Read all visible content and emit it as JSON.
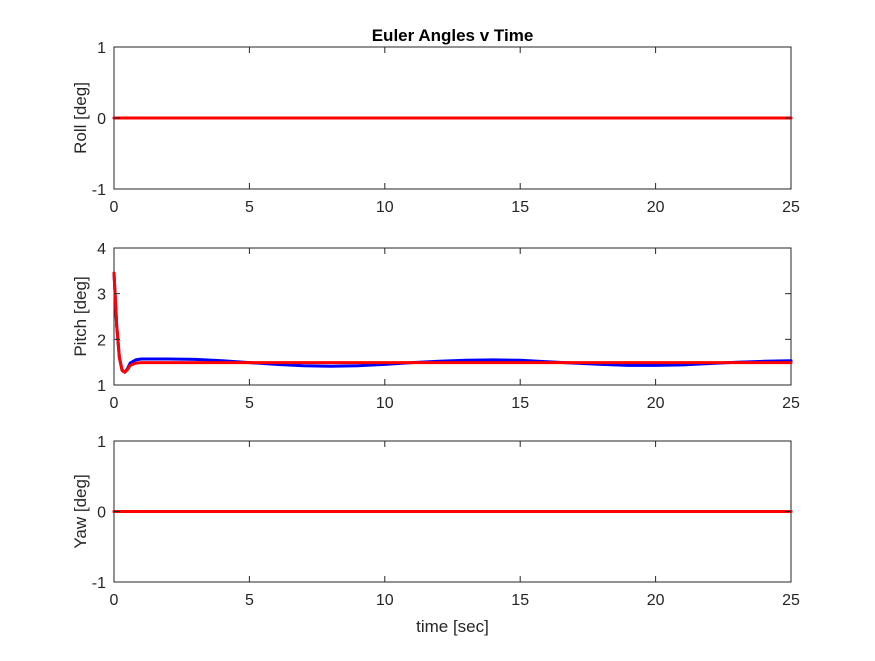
{
  "chart_data": [
    {
      "type": "line",
      "title": "Euler Angles v Time",
      "xlabel": "",
      "ylabel": "Roll [deg]",
      "xlim": [
        0,
        25
      ],
      "ylim": [
        -1,
        1
      ],
      "xticks": [
        0,
        5,
        10,
        15,
        20,
        25
      ],
      "yticks": [
        -1,
        0,
        1
      ],
      "grid": false,
      "series": [
        {
          "color": "#0000ff",
          "x": [
            0,
            25
          ],
          "y": [
            0,
            0
          ]
        },
        {
          "color": "#ff0000",
          "x": [
            0,
            25
          ],
          "y": [
            0,
            0
          ]
        }
      ]
    },
    {
      "type": "line",
      "title": "",
      "xlabel": "",
      "ylabel": "Pitch [deg]",
      "xlim": [
        0,
        25
      ],
      "ylim": [
        1,
        4
      ],
      "xticks": [
        0,
        5,
        10,
        15,
        20,
        25
      ],
      "yticks": [
        1,
        2,
        3,
        4
      ],
      "grid": false,
      "series": [
        {
          "color": "#0000ff",
          "x": [
            0,
            0.1,
            0.2,
            0.3,
            0.4,
            0.5,
            0.6,
            0.8,
            1.0,
            1.5,
            2.0,
            3.0,
            4.0,
            5.0,
            6.0,
            7.0,
            8.0,
            9.0,
            10.0,
            11.0,
            12.0,
            13.0,
            14.0,
            15.0,
            16.0,
            17.0,
            18.0,
            19.0,
            20.0,
            21.0,
            22.0,
            23.0,
            24.0,
            25.0
          ],
          "y": [
            3.45,
            2.3,
            1.6,
            1.32,
            1.28,
            1.36,
            1.48,
            1.55,
            1.57,
            1.57,
            1.57,
            1.56,
            1.53,
            1.49,
            1.45,
            1.42,
            1.41,
            1.42,
            1.45,
            1.49,
            1.52,
            1.54,
            1.55,
            1.54,
            1.51,
            1.48,
            1.45,
            1.43,
            1.43,
            1.44,
            1.47,
            1.5,
            1.52,
            1.53
          ]
        },
        {
          "color": "#ff0000",
          "x": [
            0,
            0.1,
            0.2,
            0.3,
            0.4,
            0.5,
            0.6,
            0.8,
            1.0,
            1.5,
            25.0
          ],
          "y": [
            3.45,
            2.3,
            1.6,
            1.32,
            1.28,
            1.34,
            1.43,
            1.48,
            1.49,
            1.49,
            1.49
          ]
        }
      ]
    },
    {
      "type": "line",
      "title": "",
      "xlabel": "time [sec]",
      "ylabel": "Yaw [deg]",
      "xlim": [
        0,
        25
      ],
      "ylim": [
        -1,
        1
      ],
      "xticks": [
        0,
        5,
        10,
        15,
        20,
        25
      ],
      "yticks": [
        -1,
        0,
        1
      ],
      "grid": false,
      "series": [
        {
          "color": "#0000ff",
          "x": [
            0,
            25
          ],
          "y": [
            0,
            0
          ]
        },
        {
          "color": "#ff0000",
          "x": [
            0,
            25
          ],
          "y": [
            0,
            0
          ]
        }
      ]
    }
  ]
}
